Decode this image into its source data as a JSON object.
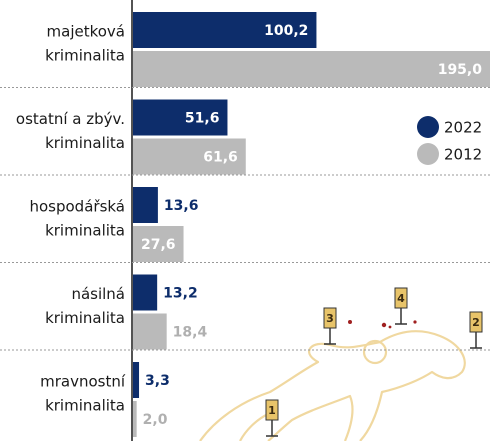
{
  "chart_data": {
    "type": "bar",
    "orientation": "horizontal",
    "categories": [
      [
        "majetková",
        "kriminalita"
      ],
      [
        "ostatní a zbýv.",
        "kriminalita"
      ],
      [
        "hospodářská",
        "kriminalita"
      ],
      [
        "násilná",
        "kriminalita"
      ],
      [
        "mravnostní",
        "kriminalita"
      ]
    ],
    "series": [
      {
        "name": "2022",
        "color": "#0d2d6b",
        "values": [
          100.2,
          51.6,
          13.6,
          13.2,
          3.3
        ],
        "value_labels": [
          "100,2",
          "51,6",
          "13,6",
          "13,2",
          "3,3"
        ]
      },
      {
        "name": "2012",
        "color": "#bababa",
        "values": [
          195.0,
          61.6,
          27.6,
          18.4,
          2.0
        ],
        "value_labels": [
          "195,0",
          "61,6",
          "27,6",
          "18,4",
          "2,0"
        ]
      }
    ],
    "legend": "right"
  },
  "illustration": {
    "markers": [
      "1",
      "2",
      "3",
      "4"
    ]
  }
}
